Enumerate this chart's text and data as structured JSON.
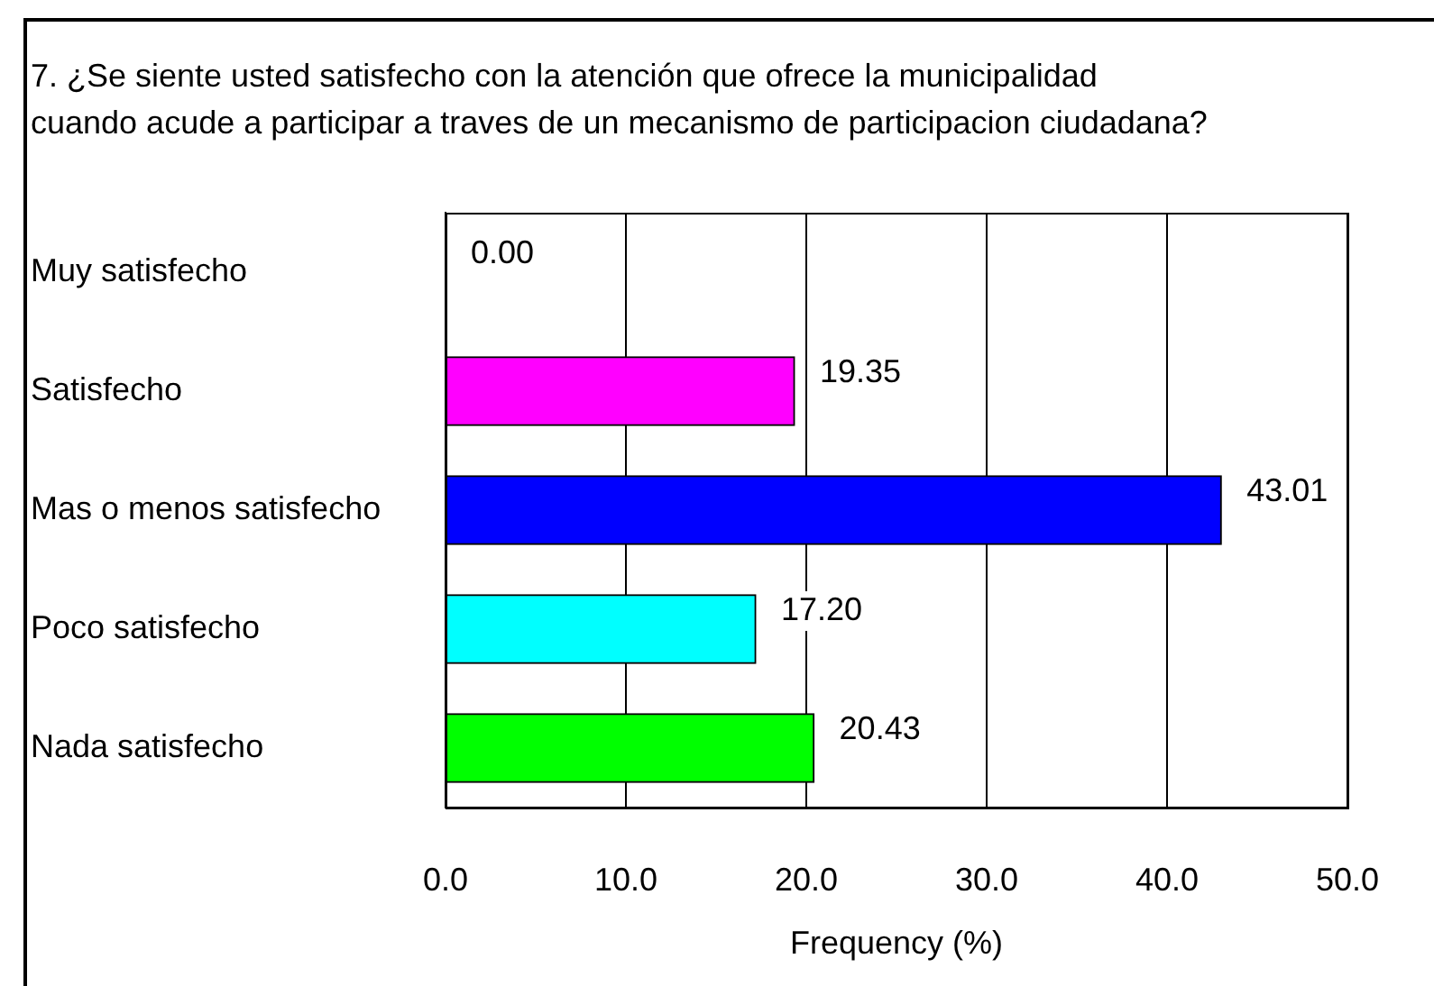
{
  "chart_data": {
    "type": "bar",
    "orientation": "horizontal",
    "title": "7. ¿Se siente usted satisfecho con la atención que ofrece la municipalidad cuando acude a participar a traves de un mecanismo de participacion ciudadana?",
    "xlabel": "Frequency (%)",
    "categories": [
      "Muy satisfecho",
      "Satisfecho",
      "Mas o menos satisfecho",
      "Poco satisfecho",
      "Nada satisfecho"
    ],
    "values": [
      0,
      19.35,
      43.01,
      17.2,
      20.43
    ],
    "colors": [
      "#ffffff",
      "#ff00ff",
      "#0000ff",
      "#00ffff",
      "#00ff00"
    ],
    "value_labels": [
      "0.00",
      "19.35",
      "43.01",
      "17.20",
      "20.43"
    ],
    "xlim": [
      0,
      50
    ],
    "xticks": [
      {
        "value": 0,
        "label": "0.0"
      },
      {
        "value": 10,
        "label": "10.0"
      },
      {
        "value": 20,
        "label": "20.0"
      },
      {
        "value": 30,
        "label": "30.0"
      },
      {
        "value": 40,
        "label": "40.0"
      },
      {
        "value": 50,
        "label": "50.0"
      }
    ],
    "grid": "x"
  }
}
